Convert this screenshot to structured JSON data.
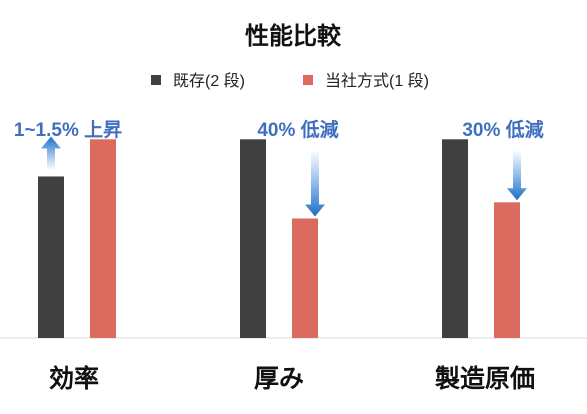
{
  "chart_data": {
    "type": "bar",
    "title": "性能比較",
    "xlabel": "",
    "ylabel": "",
    "categories": [
      "効率",
      "厚み",
      "製造原価"
    ],
    "series": [
      {
        "name": "既存(2 段)",
        "values": [
          100,
          123,
          123
        ]
      },
      {
        "name": "当社方式(1 段)",
        "values": [
          123,
          74,
          84
        ]
      }
    ],
    "ylim": [
      0,
      130
    ],
    "legend": "top",
    "grid": false,
    "colors": {
      "existing": "#404040",
      "proposed": "#db6b5f",
      "annotation": "#3f6fbf",
      "arrow": "#1e6fc9"
    },
    "annotations": [
      {
        "category": "効率",
        "text": "1~1.5% 上昇",
        "direction": "up"
      },
      {
        "category": "厚み",
        "text": "40% 低減",
        "direction": "down"
      },
      {
        "category": "製造原価",
        "text": "30% 低減",
        "direction": "down"
      }
    ]
  }
}
